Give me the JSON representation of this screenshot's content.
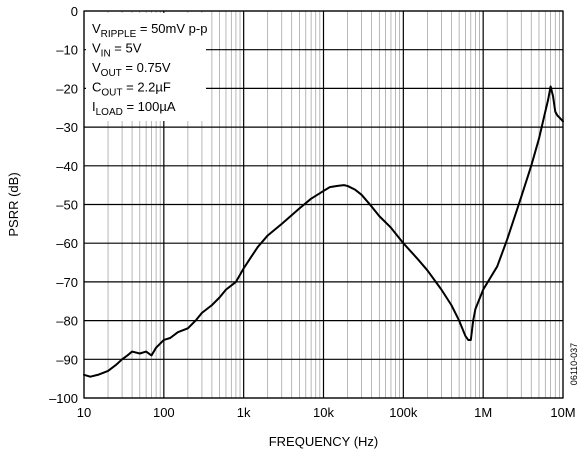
{
  "chart_data": {
    "type": "line",
    "xlabel": "FREQUENCY (Hz)",
    "ylabel": "PSRR (dB)",
    "x_scale": "log",
    "xlim": [
      10,
      10000000
    ],
    "ylim": [
      -100,
      0
    ],
    "x_ticks": [
      {
        "value": 10,
        "label": "10"
      },
      {
        "value": 100,
        "label": "100"
      },
      {
        "value": 1000,
        "label": "1k"
      },
      {
        "value": 10000,
        "label": "10k"
      },
      {
        "value": 100000,
        "label": "100k"
      },
      {
        "value": 1000000,
        "label": "1M"
      },
      {
        "value": 10000000,
        "label": "10M"
      }
    ],
    "y_ticks": [
      {
        "value": 0,
        "label": "0"
      },
      {
        "value": -10,
        "label": "–10"
      },
      {
        "value": -20,
        "label": "–20"
      },
      {
        "value": -30,
        "label": "–30"
      },
      {
        "value": -40,
        "label": "–40"
      },
      {
        "value": -50,
        "label": "–50"
      },
      {
        "value": -60,
        "label": "–60"
      },
      {
        "value": -70,
        "label": "–70"
      },
      {
        "value": -80,
        "label": "–80"
      },
      {
        "value": -90,
        "label": "–90"
      },
      {
        "value": -100,
        "label": "–100"
      }
    ],
    "grid": true,
    "annotation_lines": [
      {
        "main": "V",
        "sub": "RIPPLE",
        "rest": " = 50mV p-p"
      },
      {
        "main": "V",
        "sub": "IN",
        "rest": " = 5V"
      },
      {
        "main": "V",
        "sub": "OUT",
        "rest": " = 0.75V"
      },
      {
        "main": "C",
        "sub": "OUT",
        "rest": " = 2.2µF"
      },
      {
        "main": "I",
        "sub": "LOAD",
        "rest": " = 100µA"
      }
    ],
    "figure_id": "06110-037",
    "series": [
      {
        "color": "#000000",
        "x": [
          10,
          12,
          15,
          20,
          25,
          30,
          35,
          40,
          50,
          60,
          70,
          80,
          100,
          120,
          150,
          200,
          250,
          300,
          400,
          500,
          600,
          800,
          1000,
          1200,
          1500,
          2000,
          3000,
          5000,
          7000,
          10000,
          12000,
          15000,
          18000,
          20000,
          25000,
          30000,
          40000,
          50000,
          70000,
          100000,
          150000,
          200000,
          300000,
          400000,
          500000,
          600000,
          650000,
          700000,
          750000,
          800000,
          1000000,
          1500000,
          2000000,
          3000000,
          4000000,
          5000000,
          6000000,
          6500000,
          7000000,
          7500000,
          8000000,
          8500000,
          9000000,
          10000000
        ],
        "y": [
          -94,
          -94.5,
          -94,
          -93,
          -91.5,
          -90,
          -89,
          -88,
          -88.5,
          -88,
          -89,
          -87,
          -85,
          -84.5,
          -83,
          -82,
          -80,
          -78,
          -76,
          -74,
          -72,
          -70,
          -66.5,
          -64,
          -61,
          -58,
          -55,
          -51,
          -48.5,
          -46.5,
          -45.5,
          -45.2,
          -45,
          -45.2,
          -46.2,
          -47.5,
          -50.5,
          -53,
          -56,
          -60,
          -64,
          -67,
          -72,
          -76,
          -80,
          -84,
          -85,
          -85,
          -80,
          -77,
          -72,
          -66,
          -59,
          -48,
          -40,
          -33,
          -26,
          -23,
          -19.5,
          -22,
          -26,
          -27,
          -27.5,
          -28.5
        ]
      }
    ]
  }
}
